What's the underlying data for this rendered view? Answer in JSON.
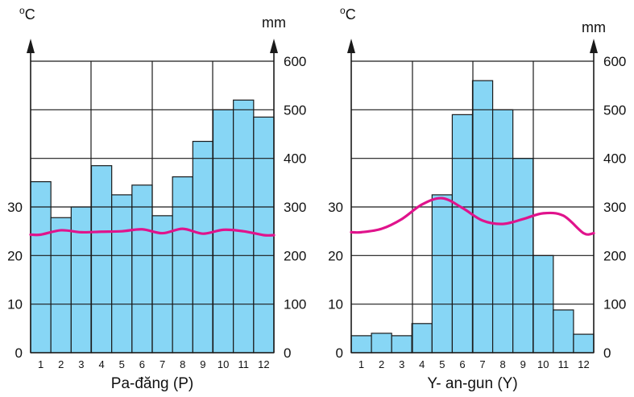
{
  "chart_data": [
    {
      "type": "bar",
      "title": "Pa-đăng (P)",
      "categories": [
        "1",
        "2",
        "3",
        "4",
        "5",
        "6",
        "7",
        "8",
        "9",
        "10",
        "11",
        "12"
      ],
      "series": [
        {
          "kind": "bar",
          "axis": "right",
          "values": [
            352,
            278,
            300,
            385,
            325,
            345,
            282,
            362,
            435,
            500,
            520,
            485
          ]
        },
        {
          "kind": "line",
          "axis": "left",
          "values": [
            24.3,
            25.2,
            24.8,
            24.9,
            25.0,
            25.4,
            24.6,
            25.5,
            24.5,
            25.3,
            25.0,
            24.2
          ]
        }
      ],
      "ylabel_left": "oC",
      "ylabel_right": "mm",
      "left_ticks": [
        "0",
        "10",
        "20",
        "30"
      ],
      "right_ticks": [
        "0",
        "100",
        "200",
        "300",
        "400",
        "500",
        "600"
      ],
      "ylim_left": [
        0,
        60
      ],
      "ylim_right": [
        0,
        600
      ],
      "grid": true,
      "colors": {
        "bar": "#87d6f5",
        "line": "#e0138c"
      }
    },
    {
      "type": "bar",
      "title": "Y- an-gun (Y)",
      "categories": [
        "1",
        "2",
        "3",
        "4",
        "5",
        "6",
        "7",
        "8",
        "9",
        "10",
        "11",
        "12"
      ],
      "series": [
        {
          "kind": "bar",
          "axis": "right",
          "values": [
            35,
            40,
            35,
            60,
            325,
            490,
            560,
            500,
            400,
            200,
            88,
            38
          ]
        },
        {
          "kind": "line",
          "axis": "left",
          "values": [
            24.8,
            25.5,
            27.5,
            30.5,
            31.8,
            29.8,
            27.2,
            26.5,
            27.5,
            28.7,
            28.2,
            24.6
          ]
        }
      ],
      "ylabel_left": "oC",
      "ylabel_right": "mm",
      "left_ticks": [
        "0",
        "10",
        "20",
        "30"
      ],
      "right_ticks": [
        "0",
        "100",
        "200",
        "300",
        "400",
        "500",
        "600"
      ],
      "ylim_left": [
        0,
        60
      ],
      "ylim_right": [
        0,
        600
      ],
      "grid": true,
      "colors": {
        "bar": "#87d6f5",
        "line": "#e0138c"
      }
    }
  ]
}
